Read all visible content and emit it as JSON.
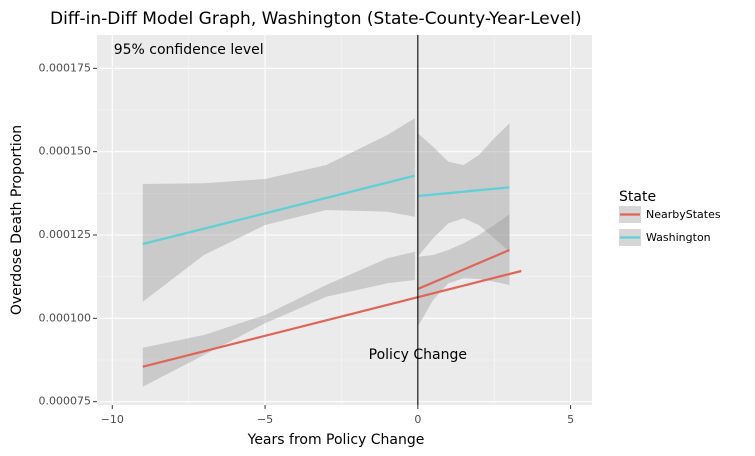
{
  "chart_data": {
    "type": "line",
    "title": "Diff-in-Diff Model Graph, Washington (State-County-Year-Level)",
    "xlabel": "Years from Policy Change",
    "ylabel": "Overdose Death Proportion",
    "xlim": [
      -10.5,
      5.7
    ],
    "ylim": [
      7.4e-05,
      0.000185
    ],
    "x_ticks": [
      -10,
      -5,
      0,
      5
    ],
    "x_tick_labels": [
      "−10",
      "−5",
      "0",
      "5"
    ],
    "y_ticks": [
      7.5e-05,
      0.0001,
      0.000125,
      0.00015,
      0.000175
    ],
    "y_tick_labels": [
      "0.000075",
      "0.000100",
      "0.000125",
      "0.000150",
      "0.000175"
    ],
    "grid": true,
    "vline": {
      "x": 0,
      "color": "#000000"
    },
    "annotations": [
      {
        "id": "confidence",
        "text": "95% confidence level",
        "x": -7.5,
        "y": 0.0001805
      },
      {
        "id": "policy",
        "text": "Policy Change",
        "x": 0,
        "y": 8.9e-05
      }
    ],
    "legend": {
      "title": "State",
      "position": "right"
    },
    "series": [
      {
        "name": "NearbyStates",
        "color": "#E06457",
        "segments": [
          {
            "x": [
              -9,
              3.3877
            ],
            "y": [
              8.55e-05,
              0.0001142
            ],
            "ci": {
              "x": [
                -9,
                -7,
                -5,
                -3,
                -1,
                -0.1
              ],
              "lower": [
                7.95e-05,
                8.9e-05,
                9.85e-05,
                0.0001065,
                0.0001105,
                0.0001115
              ],
              "upper": [
                9.12e-05,
                9.5e-05,
                0.000101,
                0.00011,
                0.000118,
                0.00012
              ]
            }
          },
          {
            "x": [
              0,
              3
            ],
            "y": [
              0.0001088,
              0.0001205
            ],
            "ci": {
              "x": [
                0,
                0.5,
                1,
                1.5,
                2,
                2.5,
                3
              ],
              "lower": [
                9.75e-05,
                0.0001055,
                0.0001105,
                0.000112,
                0.0001118,
                0.000111,
                0.00011
              ],
              "upper": [
                0.0001185,
                0.000119,
                0.0001205,
                0.0001225,
                0.000125,
                0.000128,
                0.0001312
              ]
            }
          }
        ]
      },
      {
        "name": "Washington",
        "color": "#5ED1D8",
        "segments": [
          {
            "x": [
              -9,
              -0.1
            ],
            "y": [
              0.0001223,
              0.0001428
            ],
            "ci": {
              "x": [
                -9,
                -7,
                -5,
                -3,
                -1,
                -0.1
              ],
              "lower": [
                0.000105,
                0.000119,
                0.000128,
                0.0001325,
                0.000132,
                0.0001305
              ],
              "upper": [
                0.0001403,
                0.0001405,
                0.0001418,
                0.000146,
                0.000155,
                0.00016
              ]
            }
          },
          {
            "x": [
              0,
              3
            ],
            "y": [
              0.0001367,
              0.0001393
            ],
            "ci": {
              "x": [
                0,
                0.5,
                1,
                1.5,
                2,
                2.5,
                3
              ],
              "lower": [
                0.0001185,
                0.000124,
                0.0001285,
                0.00013,
                0.000128,
                0.000124,
                0.00012
              ],
              "upper": [
                0.0001555,
                0.0001515,
                0.000147,
                0.000146,
                0.000149,
                0.000154,
                0.0001585
              ]
            }
          }
        ]
      }
    ]
  }
}
